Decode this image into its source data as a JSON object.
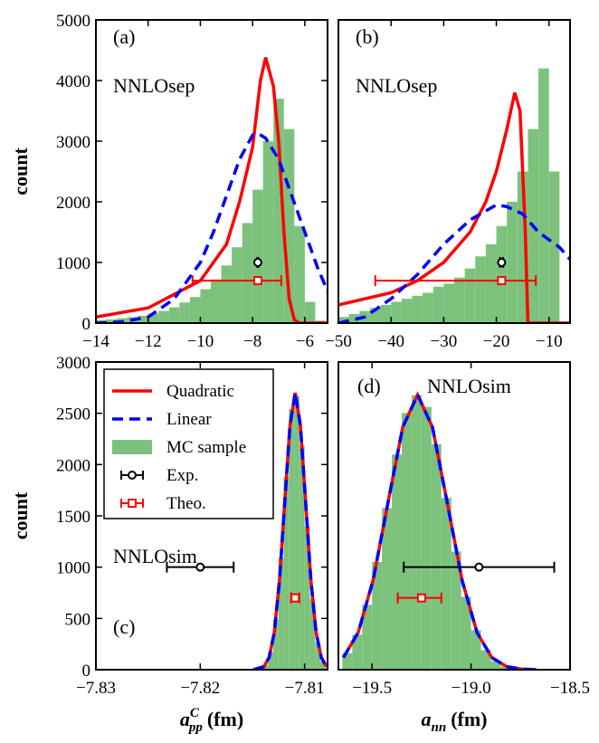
{
  "chart_data": [
    {
      "type": "histogram",
      "label": "(a)",
      "annotation": "NNLOsep",
      "ylabel": "count",
      "xlim": [
        -14,
        -5.13
      ],
      "ylim": [
        0,
        5000
      ],
      "xticks": [
        {
          "value": -14,
          "label": "−14"
        },
        {
          "value": -12,
          "label": "−12"
        },
        {
          "value": -10,
          "label": "−10"
        },
        {
          "value": -8,
          "label": "−8"
        },
        {
          "value": -6,
          "label": "−6"
        }
      ],
      "yticks": [
        0,
        1000,
        2000,
        3000,
        4000,
        5000
      ],
      "hist_color": "#7cc27c",
      "bins": [
        -14,
        -13.6,
        -13.2,
        -12.8,
        -12.4,
        -12,
        -11.6,
        -11.2,
        -10.8,
        -10.4,
        -10,
        -9.6,
        -9.2,
        -8.8,
        -8.4,
        -8,
        -7.6,
        -7.2,
        -6.8,
        -6.4,
        -6,
        -5.6,
        -5.2
      ],
      "counts": [
        50,
        60,
        80,
        100,
        120,
        160,
        200,
        260,
        340,
        430,
        560,
        720,
        950,
        1250,
        1650,
        2200,
        3000,
        3700,
        3200,
        1600,
        350,
        40
      ],
      "series": [
        {
          "color": "#ff0000",
          "x": [
            -14,
            -12,
            -10,
            -9,
            -8.5,
            -8,
            -7.7,
            -7.5,
            -7.2,
            -7,
            -6.8,
            -6.6,
            -6.4,
            -6.2,
            -5.1
          ],
          "values": [
            100,
            250,
            700,
            1300,
            2000,
            2900,
            4000,
            4380,
            3900,
            3000,
            1500,
            400,
            50,
            0,
            0
          ]
        },
        {
          "color": "#0000ff",
          "dashed": true,
          "x": [
            -14,
            -13,
            -12,
            -11,
            -10,
            -9.5,
            -9,
            -8.5,
            -8,
            -7.8,
            -7.5,
            -7,
            -6.5,
            -6,
            -5.5,
            -5.1
          ],
          "values": [
            0,
            20,
            100,
            400,
            1000,
            1500,
            2100,
            2700,
            3100,
            3130,
            3050,
            2700,
            2100,
            1500,
            900,
            500
          ]
        }
      ],
      "points": [
        {
          "color": "#000000",
          "marker": "circle",
          "x": -7.8,
          "y": 1000,
          "xmin": -7.82,
          "xmax": -7.78
        },
        {
          "color": "#ff0000",
          "marker": "square",
          "x": -7.8,
          "y": 700,
          "xmin": -10.3,
          "xmax": -6.9
        }
      ]
    },
    {
      "type": "histogram",
      "label": "(b)",
      "annotation": "NNLOsep",
      "xlim": [
        -50,
        -6
      ],
      "ylim": [
        0,
        5000
      ],
      "xticks": [
        {
          "value": -50,
          "label": "−50"
        },
        {
          "value": -40,
          "label": "−40"
        },
        {
          "value": -30,
          "label": "−30"
        },
        {
          "value": -20,
          "label": "−20"
        },
        {
          "value": -10,
          "label": "−10"
        }
      ],
      "hist_color": "#7cc27c",
      "bins": [
        -50,
        -48,
        -46,
        -44,
        -42,
        -40,
        -38,
        -36,
        -34,
        -32,
        -30,
        -28,
        -26,
        -24,
        -22,
        -20,
        -18,
        -16,
        -14,
        -12,
        -10,
        -8
      ],
      "counts": [
        100,
        150,
        200,
        250,
        300,
        350,
        400,
        450,
        500,
        600,
        650,
        750,
        900,
        1100,
        1300,
        1600,
        2000,
        2500,
        3200,
        4200,
        2500
      ],
      "series": [
        {
          "color": "#ff0000",
          "x": [
            -50,
            -40,
            -35,
            -30,
            -25,
            -22,
            -20,
            -18,
            -16.5,
            -15.5,
            -14.5,
            -14,
            -6
          ],
          "values": [
            300,
            500,
            700,
            1000,
            1500,
            2000,
            2500,
            3200,
            3800,
            3500,
            1500,
            0,
            0
          ]
        },
        {
          "color": "#0000ff",
          "dashed": true,
          "x": [
            -50,
            -45,
            -40,
            -35,
            -30,
            -25,
            -20,
            -18,
            -15,
            -12,
            -8,
            -6
          ],
          "values": [
            0,
            100,
            400,
            800,
            1300,
            1700,
            1950,
            1920,
            1800,
            1500,
            1250,
            1050
          ]
        }
      ],
      "points": [
        {
          "color": "#000000",
          "marker": "circle",
          "x": -19,
          "y": 1000,
          "xmin": -19.3,
          "xmax": -18.7
        },
        {
          "color": "#ff0000",
          "marker": "square",
          "x": -19,
          "y": 700,
          "xmin": -43,
          "xmax": -12.5
        }
      ]
    },
    {
      "type": "histogram",
      "label": "(c)",
      "annotation": "NNLOsim",
      "ylabel": "count",
      "xlabel": {
        "symbol": "a",
        "sub": "pp",
        "sup": "C",
        "unit": "(fm)"
      },
      "xlim": [
        -7.83,
        -7.8078
      ],
      "ylim": [
        0,
        3000
      ],
      "xticks": [
        {
          "value": -7.83,
          "label": "−7.83"
        },
        {
          "value": -7.82,
          "label": "−7.82"
        },
        {
          "value": -7.81,
          "label": "−7.81"
        }
      ],
      "yticks": [
        0,
        500,
        1000,
        1500,
        2000,
        2500,
        3000
      ],
      "hist_name": "MC sample",
      "hist_color": "#7cc27c",
      "bins": [
        -7.815,
        -7.8145,
        -7.814,
        -7.8135,
        -7.813,
        -7.8125,
        -7.812,
        -7.8115,
        -7.811,
        -7.8105,
        -7.81,
        -7.8095,
        -7.809,
        -7.8085,
        -7.808,
        -7.8075
      ],
      "counts": [
        2,
        10,
        46,
        170,
        487,
        1086,
        1881,
        2541,
        2670,
        2187,
        1394,
        692,
        267,
        81,
        19
      ],
      "series": [
        {
          "name": "Quadratic",
          "color": "#ff0000",
          "x": [
            -7.8149,
            -7.8139,
            -7.8134,
            -7.8129,
            -7.8124,
            -7.8119,
            -7.8114,
            -7.8109,
            -7.8104,
            -7.8099,
            -7.8094,
            -7.8089,
            -7.8084,
            -7.8079
          ],
          "values": [
            1,
            30,
            119,
            365,
            877,
            1638,
            2383,
            2700,
            2383,
            1638,
            877,
            365,
            119,
            30
          ]
        },
        {
          "name": "Linear",
          "color": "#0000ff",
          "dashed": true,
          "x": [
            -7.8149,
            -7.8139,
            -7.8134,
            -7.8129,
            -7.8124,
            -7.8119,
            -7.8114,
            -7.8109,
            -7.8104,
            -7.8099,
            -7.8094,
            -7.8089,
            -7.8084,
            -7.8079
          ],
          "values": [
            1,
            30,
            119,
            365,
            877,
            1638,
            2383,
            2700,
            2383,
            1638,
            877,
            365,
            119,
            30
          ]
        }
      ],
      "points": [
        {
          "name": "Exp.",
          "color": "#000000",
          "marker": "circle",
          "x": -7.82,
          "y": 1000,
          "xmin": -7.8232,
          "xmax": -7.8168
        },
        {
          "name": "Theo.",
          "color": "#ff0000",
          "marker": "square",
          "x": -7.8109,
          "y": 700,
          "xmin": -7.8113,
          "xmax": -7.8105
        }
      ]
    },
    {
      "type": "histogram",
      "label": "(d)",
      "annotation": "NNLOsim",
      "xlabel": {
        "symbol": "a",
        "sub": "nn",
        "unit": "(fm)"
      },
      "xlim": [
        -19.67,
        -18.5
      ],
      "ylim": [
        0,
        3000
      ],
      "xticks": [
        {
          "value": -19.5,
          "label": "−19.5"
        },
        {
          "value": -19,
          "label": "−19.0"
        },
        {
          "value": -18.5,
          "label": "−18.5"
        }
      ],
      "hist_color": "#7cc27c",
      "bins": [
        -19.65,
        -19.6,
        -19.55,
        -19.5,
        -19.45,
        -19.4,
        -19.35,
        -19.3,
        -19.25,
        -19.2,
        -19.15,
        -19.1,
        -19.05,
        -19,
        -18.95,
        -18.9,
        -18.85,
        -18.8,
        -18.75,
        -18.7
      ],
      "counts": [
        161,
        340,
        632,
        1050,
        1576,
        2098,
        2503,
        2677,
        2562,
        2198,
        1675,
        1152,
        710,
        386,
        190,
        83,
        32,
        12,
        4
      ],
      "series": [
        {
          "color": "#ff0000",
          "x": [
            -19.645,
            -19.57,
            -19.495,
            -19.42,
            -19.345,
            -19.27,
            -19.195,
            -19.12,
            -19.045,
            -18.97,
            -18.895,
            -18.82,
            -18.745,
            -18.67
          ],
          "values": [
            118,
            363,
            870,
            1625,
            2365,
            2680,
            2365,
            1625,
            870,
            363,
            118,
            30,
            6,
            1
          ]
        },
        {
          "color": "#0000ff",
          "dashed": true,
          "x": [
            -19.645,
            -19.57,
            -19.495,
            -19.42,
            -19.345,
            -19.27,
            -19.195,
            -19.12,
            -19.045,
            -18.97,
            -18.895,
            -18.82,
            -18.745,
            -18.67
          ],
          "values": [
            118,
            363,
            870,
            1625,
            2365,
            2680,
            2365,
            1625,
            870,
            363,
            118,
            30,
            6,
            1
          ]
        }
      ],
      "points": [
        {
          "color": "#000000",
          "marker": "circle",
          "x": -18.96,
          "y": 1000,
          "xmin": -19.34,
          "xmax": -18.58
        },
        {
          "color": "#ff0000",
          "marker": "square",
          "x": -19.25,
          "y": 700,
          "xmin": -19.37,
          "xmax": -19.15
        }
      ]
    }
  ]
}
